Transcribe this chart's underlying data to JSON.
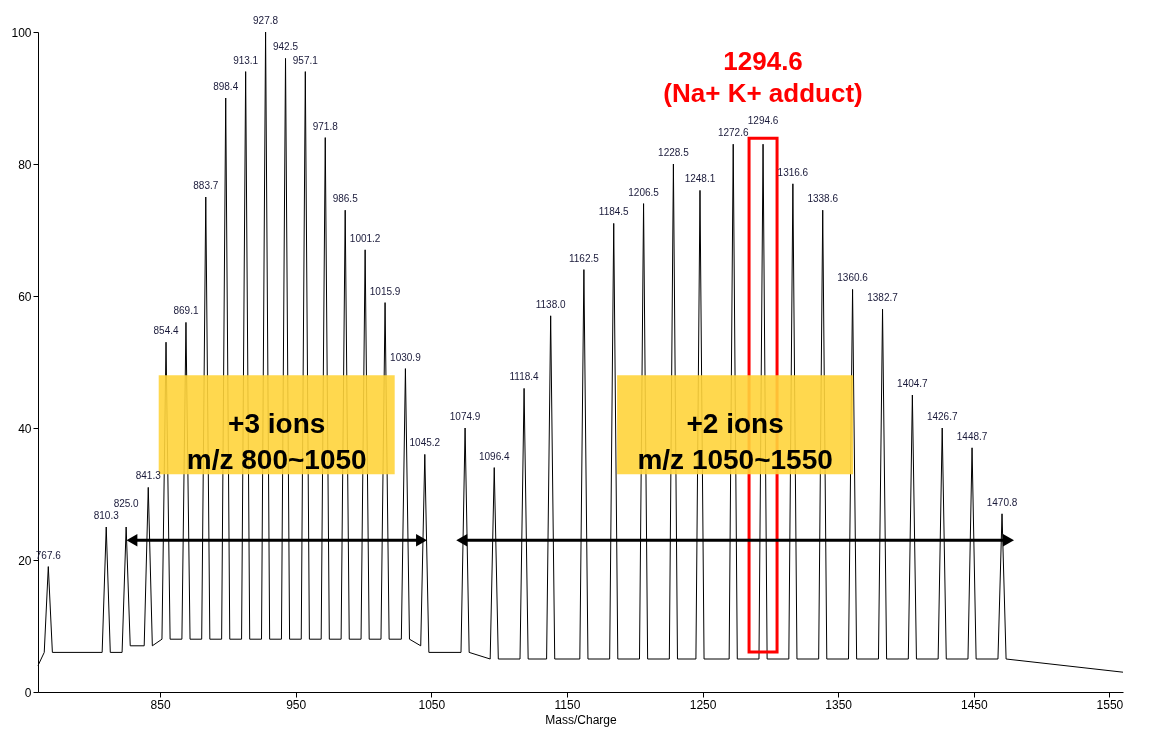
{
  "chart_data": {
    "type": "line",
    "xlabel": "Mass/Charge",
    "x": [
      760,
      764.6,
      767.6,
      770.6,
      807.3,
      810.3,
      813.3,
      822,
      825.0,
      828,
      838.3,
      841.3,
      844.3,
      851.4,
      854.4,
      857.4,
      866.1,
      869.1,
      872.1,
      880.7,
      883.7,
      886.7,
      895.4,
      898.4,
      901.4,
      910.1,
      913.1,
      916.1,
      924.8,
      927.8,
      930.8,
      939.5,
      942.5,
      945.5,
      954.1,
      957.1,
      960.1,
      968.8,
      971.8,
      974.8,
      983.5,
      986.5,
      989.5,
      998.2,
      1001.2,
      1004.2,
      1012.9,
      1015.9,
      1018.9,
      1027.9,
      1030.9,
      1033.9,
      1042.2,
      1045.2,
      1048.2,
      1071.9,
      1074.9,
      1077.9,
      1093.4,
      1096.4,
      1099.4,
      1115.4,
      1118.4,
      1121.4,
      1135.0,
      1138.0,
      1141.0,
      1159.5,
      1162.5,
      1165.5,
      1181.5,
      1184.5,
      1187.5,
      1203.5,
      1206.5,
      1209.5,
      1225.5,
      1228.5,
      1231.5,
      1245.1,
      1248.1,
      1251.1,
      1269.6,
      1272.6,
      1275.6,
      1291.6,
      1294.6,
      1297.6,
      1313.6,
      1316.6,
      1319.6,
      1335.6,
      1338.6,
      1341.6,
      1357.6,
      1360.6,
      1363.6,
      1379.7,
      1382.7,
      1385.7,
      1401.7,
      1404.7,
      1407.7,
      1423.7,
      1426.7,
      1429.7,
      1445.7,
      1448.7,
      1451.7,
      1467.8,
      1470.8,
      1473.8,
      1560
    ],
    "series": [
      {
        "color": "#000000",
        "values": [
          4,
          6,
          19,
          6,
          6,
          25,
          6,
          6,
          25,
          7,
          7,
          31,
          7,
          8,
          53,
          8,
          8,
          56,
          8,
          8,
          75,
          8,
          8,
          90,
          8,
          8,
          94,
          8,
          8,
          100,
          8,
          8,
          96,
          8,
          8,
          94,
          8,
          8,
          84,
          8,
          8,
          73,
          8,
          8,
          67,
          8,
          8,
          59,
          8,
          8,
          49,
          8,
          7,
          36,
          6,
          6,
          40,
          6,
          5,
          34,
          5,
          5,
          46,
          5,
          5,
          57,
          5,
          5,
          64,
          5,
          5,
          71,
          5,
          5,
          74,
          5,
          5,
          80,
          5,
          5,
          76,
          5,
          5,
          83,
          5,
          5,
          83,
          5,
          5,
          77,
          5,
          5,
          73,
          5,
          5,
          61,
          5,
          5,
          58,
          5,
          5,
          45,
          5,
          5,
          40,
          5,
          5,
          37,
          5,
          5,
          27,
          5,
          3
        ]
      }
    ],
    "xlim": [
      760,
      1560
    ],
    "xticks": [
      850,
      950,
      1050,
      1150,
      1250,
      1350,
      1450,
      1550
    ],
    "ylim": [
      0,
      100
    ],
    "yticks": [
      0,
      20,
      40,
      60,
      80,
      100
    ],
    "grid": false,
    "marker": "none",
    "line_style": "solid",
    "annotations": [
      "+3 ions\nm/z 800~1050",
      "+2 ions\nm/z 1050~1550",
      {
        "text": "767.6",
        "x": 767.6,
        "y": 19
      },
      {
        "text": "810.3",
        "x": 810.3,
        "y": 25
      },
      {
        "text": "825.0",
        "x": 825.0,
        "y": 25
      },
      {
        "text": "841.3",
        "x": 841.3,
        "y": 31
      },
      {
        "text": "854.4",
        "x": 854.4,
        "y": 53
      },
      {
        "text": "869.1",
        "x": 869.1,
        "y": 56
      },
      {
        "text": "883.7",
        "x": 883.7,
        "y": 75
      },
      {
        "text": "898.4",
        "x": 898.4,
        "y": 90
      },
      {
        "text": "913.1",
        "x": 913.1,
        "y": 94
      },
      {
        "text": "927.8",
        "x": 927.8,
        "y": 100
      },
      {
        "text": "942.5",
        "x": 942.5,
        "y": 96
      },
      {
        "text": "957.1",
        "x": 957.1,
        "y": 94
      },
      {
        "text": "971.8",
        "x": 971.8,
        "y": 84
      },
      {
        "text": "986.5",
        "x": 986.5,
        "y": 73
      },
      {
        "text": "1001.2",
        "x": 1001.2,
        "y": 67
      },
      {
        "text": "1015.9",
        "x": 1015.9,
        "y": 59
      },
      {
        "text": "1030.9",
        "x": 1030.9,
        "y": 49
      },
      {
        "text": "1045.2",
        "x": 1045.2,
        "y": 36
      },
      {
        "text": "1074.9",
        "x": 1074.9,
        "y": 40
      },
      {
        "text": "1096.4",
        "x": 1096.4,
        "y": 34
      },
      {
        "text": "1118.4",
        "x": 1118.4,
        "y": 46
      },
      {
        "text": "1138.0",
        "x": 1138.0,
        "y": 57
      },
      {
        "text": "1162.5",
        "x": 1162.5,
        "y": 64
      },
      {
        "text": "1184.5",
        "x": 1184.5,
        "y": 71
      },
      {
        "text": "1206.5",
        "x": 1206.5,
        "y": 74
      },
      {
        "text": "1228.5",
        "x": 1228.5,
        "y": 80
      },
      {
        "text": "1248.1",
        "x": 1248.1,
        "y": 76
      },
      {
        "text": "1272.6",
        "x": 1272.6,
        "y": 83
      },
      {
        "text": "1294.6",
        "x": 1294.6,
        "y": 83
      },
      {
        "text": "1316.6",
        "x": 1316.6,
        "y": 77
      },
      {
        "text": "1338.6",
        "x": 1338.6,
        "y": 73
      },
      {
        "text": "1360.6",
        "x": 1360.6,
        "y": 61
      },
      {
        "text": "1382.7",
        "x": 1382.7,
        "y": 58
      },
      {
        "text": "1404.7",
        "x": 1404.7,
        "y": 45
      },
      {
        "text": "1426.7",
        "x": 1426.7,
        "y": 40
      },
      {
        "text": "1448.7",
        "x": 1448.7,
        "y": 37
      },
      {
        "text": "1470.8",
        "x": 1470.8,
        "y": 27
      },
      {
        "text": "1294.6\n(Na+ K+ adduct)",
        "x": 1294.6,
        "y": 83
      }
    ]
  }
}
